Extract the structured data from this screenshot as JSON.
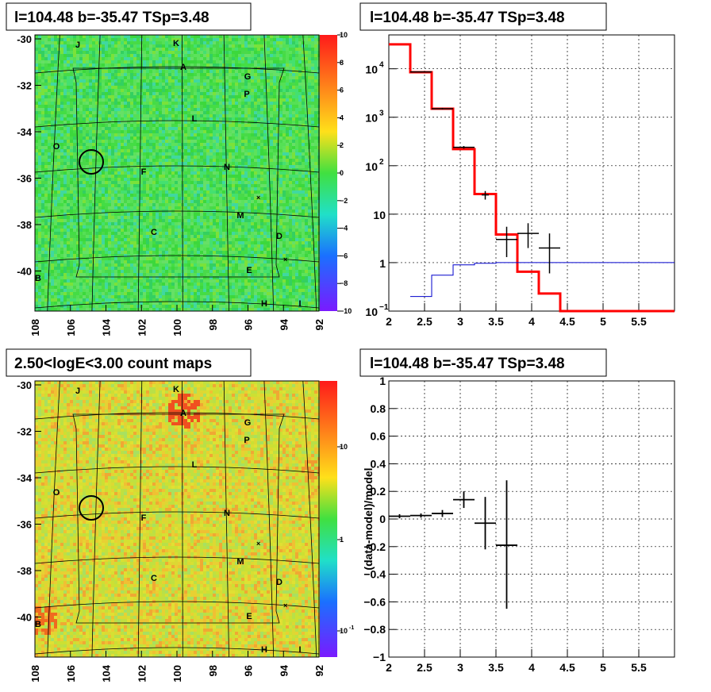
{
  "panels": {
    "top_left": {
      "title": "l=104.48 b=-35.47 TSp=3.48",
      "type": "residual TS map",
      "xticks": [
        "108",
        "106",
        "104",
        "102",
        "100",
        "98",
        "96",
        "94",
        "92"
      ],
      "yticks": [
        "-30",
        "-32",
        "-34",
        "-36",
        "-38",
        "-40"
      ],
      "colorbar": {
        "type": "linear",
        "range": [
          -10,
          10
        ],
        "ticks": [
          "10",
          "8",
          "6",
          "4",
          "2",
          "0",
          "−2",
          "−4",
          "−6",
          "−8",
          "−10"
        ]
      },
      "base_color": "#44dd44"
    },
    "bottom_left": {
      "title": "2.50<logE<3.00 count maps",
      "type": "count map",
      "xticks": [
        "108",
        "106",
        "104",
        "102",
        "100",
        "98",
        "96",
        "94",
        "92"
      ],
      "yticks": [
        "-30",
        "-32",
        "-34",
        "-36",
        "-38",
        "-40"
      ],
      "colorbar": {
        "type": "log",
        "ticks": [
          "10",
          "1",
          "10"
        ],
        "tick_exponents": [
          "",
          "",
          "-1"
        ]
      },
      "base_color": "#cce033"
    }
  },
  "source_labels": [
    "J",
    "K",
    "A",
    "G",
    "P",
    "L",
    "O",
    "F",
    "N",
    "M",
    "C",
    "D",
    "E",
    "B",
    "H",
    "I"
  ],
  "chart_data": [
    {
      "type": "line",
      "title": "l=104.48 b=-35.47 TSp=3.48",
      "xlabel": "",
      "ylabel": "",
      "xlim": [
        2.0,
        6.0
      ],
      "ylim": [
        0.1,
        50000
      ],
      "yscale": "log",
      "xticks": [
        "2",
        "2.5",
        "3",
        "3.5",
        "4",
        "4.5",
        "5",
        "5.5"
      ],
      "yticks": [
        "10^4",
        "10^3",
        "10^2",
        "10",
        "1",
        "10^-1"
      ],
      "grid": true,
      "series": [
        {
          "kind": "step",
          "color": "#ff0000",
          "edges": [
            2.0,
            2.3,
            2.6,
            2.9,
            3.2,
            3.5,
            3.8,
            4.1,
            4.4,
            6.0
          ],
          "values": [
            32000,
            8500,
            1500,
            220,
            26,
            3.8,
            0.65,
            0.23,
            0.1
          ]
        },
        {
          "kind": "step",
          "color": "#0000cc",
          "edges": [
            2.3,
            2.6,
            2.9,
            3.2,
            3.5,
            6.0
          ],
          "values": [
            0.2,
            0.55,
            0.9,
            0.97,
            1.0
          ]
        },
        {
          "kind": "errorbars",
          "color": "#000000",
          "x": [
            2.45,
            2.75,
            3.05,
            3.35,
            3.65,
            3.95,
            4.25
          ],
          "y": [
            8600,
            1500,
            240,
            25,
            3,
            4,
            2
          ],
          "xerr": [
            0.15,
            0.15,
            0.15,
            0.05,
            0.15,
            0.15,
            0.15
          ],
          "ylo": [
            8400,
            1450,
            225,
            20,
            1.3,
            2,
            0.6
          ],
          "yhi": [
            8800,
            1560,
            255,
            30,
            5.5,
            6.5,
            4
          ]
        }
      ]
    },
    {
      "type": "scatter",
      "title": "l=104.48 b=-35.47 TSp=3.48",
      "xlabel": "",
      "ylabel": "(data-model)/model",
      "xlim": [
        2.0,
        6.0
      ],
      "ylim": [
        -1.0,
        1.0
      ],
      "xticks": [
        "2",
        "2.5",
        "3",
        "3.5",
        "4",
        "4.5",
        "5",
        "5.5"
      ],
      "yticks": [
        "1",
        "0.8",
        "0.6",
        "0.4",
        "0.2",
        "0",
        "−0.2",
        "−0.4",
        "−0.6",
        "−0.8",
        "−1"
      ],
      "grid": true,
      "series": [
        {
          "kind": "errorbars",
          "color": "#000000",
          "x": [
            2.15,
            2.45,
            2.75,
            3.05,
            3.35,
            3.65
          ],
          "y": [
            0.02,
            0.025,
            0.04,
            0.14,
            -0.03,
            -0.19
          ],
          "xerr": [
            0.15,
            0.15,
            0.15,
            0.15,
            0.15,
            0.15
          ],
          "ylo": [
            0.005,
            0.01,
            0.015,
            0.08,
            -0.22,
            -0.65
          ],
          "yhi": [
            0.035,
            0.04,
            0.065,
            0.2,
            0.16,
            0.28
          ]
        }
      ]
    }
  ]
}
